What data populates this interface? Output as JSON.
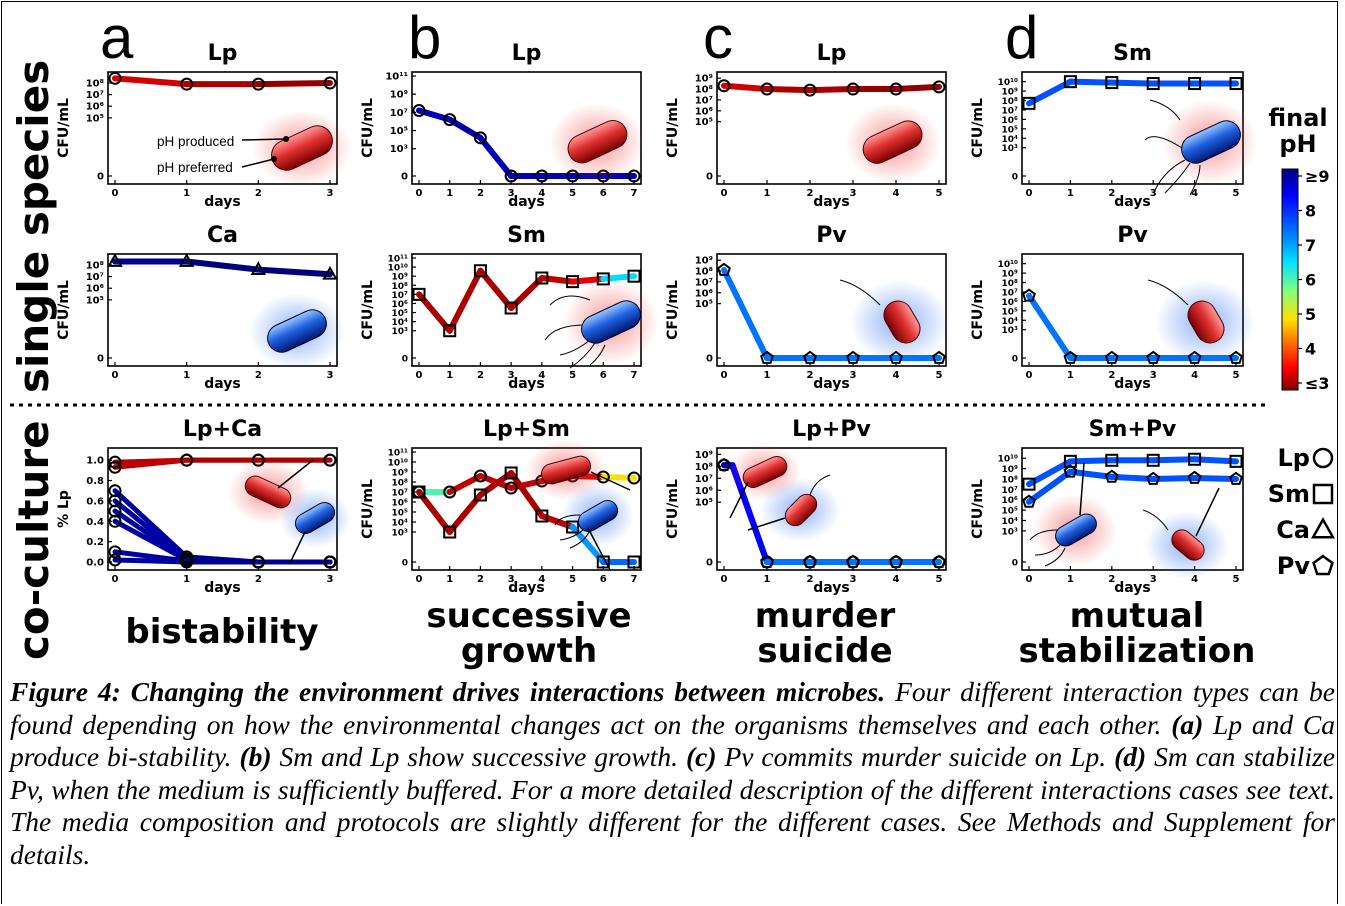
{
  "row_labels": {
    "single": "single species",
    "co": "co-culture"
  },
  "panel_letters": [
    "a",
    "b",
    "c",
    "d"
  ],
  "colorbar": {
    "title_line1": "final",
    "title_line2": "pH",
    "ticks": [
      "≥9",
      "8",
      "7",
      "6",
      "5",
      "4",
      "≤3"
    ],
    "pH_range": [
      3,
      9
    ]
  },
  "legend": [
    {
      "label": "Lp",
      "marker": "circle"
    },
    {
      "label": "Sm",
      "marker": "square"
    },
    {
      "label": "Ca",
      "marker": "triangle"
    },
    {
      "label": "Pv",
      "marker": "pentagon"
    }
  ],
  "interaction_labels": [
    {
      "line1": "bistability",
      "line2": ""
    },
    {
      "line1": "successive",
      "line2": "growth"
    },
    {
      "line1": "murder",
      "line2": "suicide"
    },
    {
      "line1": "mutual",
      "line2": "stabilization"
    }
  ],
  "cell_annotations": {
    "pH_produced": "pH produced",
    "pH_preferred": "pH preferred"
  },
  "chart_data": [
    {
      "id": "a1",
      "type": "line",
      "title": "Lp",
      "xlabel": "days",
      "ylabel": "CFU/mL",
      "xlim": [
        0,
        3
      ],
      "yticks": [
        "0",
        "10⁵",
        "10⁶",
        "10⁷",
        "10⁸"
      ],
      "ymax": 8.6,
      "series": [
        {
          "name": "Lp",
          "marker": "circle",
          "x": [
            0,
            1,
            2,
            3
          ],
          "log10": [
            8.4,
            7.9,
            7.9,
            8.0
          ],
          "pH": [
            5.5,
            3.4,
            3.2,
            3.1
          ]
        }
      ]
    },
    {
      "id": "b1",
      "type": "line",
      "title": "Lp",
      "xlabel": "days",
      "ylabel": "CFU/mL",
      "xlim": [
        0,
        7
      ],
      "yticks": [
        "0",
        "10³",
        "10⁵",
        "10⁷",
        "10⁹",
        "10¹¹"
      ],
      "ymax": 11,
      "series": [
        {
          "name": "Lp",
          "marker": "circle",
          "x": [
            0,
            1,
            2,
            3,
            4,
            5,
            6,
            7
          ],
          "log10": [
            7.2,
            6.2,
            4.2,
            0,
            0,
            0,
            0,
            0
          ],
          "pH": [
            8.6,
            8.7,
            8.8,
            8.7,
            8.7,
            8.7,
            8.7,
            8.7
          ]
        }
      ]
    },
    {
      "id": "c1",
      "type": "line",
      "title": "Lp",
      "xlabel": "days",
      "ylabel": "CFU/mL",
      "xlim": [
        0,
        5
      ],
      "yticks": [
        "0",
        "10⁵",
        "10⁶",
        "10⁷",
        "10⁸",
        "10⁹"
      ],
      "ymax": 9.2,
      "series": [
        {
          "name": "Lp",
          "marker": "circle",
          "x": [
            0,
            1,
            2,
            3,
            4,
            5
          ],
          "log10": [
            8.3,
            8.0,
            7.9,
            8.0,
            8.0,
            8.2
          ],
          "pH": [
            5.6,
            3.4,
            3.2,
            3.2,
            3.1,
            3.1
          ]
        }
      ]
    },
    {
      "id": "d1",
      "type": "line",
      "title": "Sm",
      "xlabel": "days",
      "ylabel": "CFU/mL",
      "xlim": [
        0,
        5
      ],
      "yticks": [
        "0",
        "10³",
        "10⁴",
        "10⁵",
        "10⁶",
        "10⁷",
        "10⁸",
        "10⁹",
        "10¹⁰"
      ],
      "ymax": 10.6,
      "series": [
        {
          "name": "Sm",
          "marker": "square",
          "x": [
            0,
            1,
            2,
            3,
            4,
            5
          ],
          "log10": [
            7.7,
            10.0,
            9.9,
            9.8,
            9.8,
            9.8
          ],
          "pH": [
            7.8,
            7.6,
            7.6,
            7.6,
            7.6,
            7.6
          ]
        }
      ]
    },
    {
      "id": "a2",
      "type": "line",
      "title": "Ca",
      "xlabel": "days",
      "ylabel": "CFU/mL",
      "xlim": [
        0,
        3
      ],
      "yticks": [
        "0",
        "10⁵",
        "10⁶",
        "10⁷",
        "10⁸"
      ],
      "ymax": 8.6,
      "series": [
        {
          "name": "Ca",
          "marker": "triangle",
          "x": [
            0,
            1,
            2,
            3
          ],
          "log10": [
            8.3,
            8.3,
            7.6,
            7.2
          ],
          "pH": [
            8.7,
            8.9,
            9.0,
            9.0
          ]
        }
      ]
    },
    {
      "id": "b2",
      "type": "line",
      "title": "Sm",
      "xlabel": "days",
      "ylabel": "CFU/mL",
      "xlim": [
        0,
        7
      ],
      "yticks": [
        "0",
        "10³",
        "10⁴",
        "10⁵",
        "10⁶",
        "10⁷",
        "10⁸",
        "10⁹",
        "10¹⁰",
        "10¹¹"
      ],
      "ymax": 11,
      "series": [
        {
          "name": "Sm",
          "marker": "square",
          "x": [
            0,
            1,
            2,
            3,
            4,
            5,
            6,
            7
          ],
          "log10": [
            7.0,
            3.0,
            9.6,
            5.5,
            8.8,
            8.4,
            8.7,
            9.0
          ],
          "pH": [
            6.0,
            3.2,
            3.2,
            3.2,
            3.2,
            3.3,
            3.5,
            6.5
          ]
        }
      ]
    },
    {
      "id": "c2",
      "type": "line",
      "title": "Pv",
      "xlabel": "days",
      "ylabel": "CFU/mL",
      "xlim": [
        0,
        5
      ],
      "yticks": [
        "0",
        "10⁵",
        "10⁶",
        "10⁷",
        "10⁸",
        "10⁹"
      ],
      "ymax": 9.2,
      "series": [
        {
          "name": "Pv",
          "marker": "pentagon",
          "x": [
            0,
            1,
            2,
            3,
            4,
            5
          ],
          "log10": [
            8.1,
            0,
            0,
            0,
            0,
            0
          ],
          "pH": [
            8.6,
            7.3,
            7.3,
            7.3,
            7.3,
            7.3
          ]
        }
      ]
    },
    {
      "id": "d2",
      "type": "line",
      "title": "Pv",
      "xlabel": "days",
      "ylabel": "CFU/mL",
      "xlim": [
        0,
        5
      ],
      "yticks": [
        "0",
        "10³",
        "10⁴",
        "10⁵",
        "10⁶",
        "10⁷",
        "10⁸",
        "10⁹",
        "10¹⁰"
      ],
      "ymax": 10.6,
      "series": [
        {
          "name": "Pv",
          "marker": "pentagon",
          "x": [
            0,
            1,
            2,
            3,
            4,
            5
          ],
          "log10": [
            6.6,
            0,
            0,
            0,
            0,
            0
          ],
          "pH": [
            8.6,
            7.3,
            7.3,
            7.3,
            7.3,
            7.3
          ]
        }
      ]
    },
    {
      "id": "a3",
      "type": "line",
      "title": "Lp+Ca",
      "xlabel": "days",
      "ylabel": "% Lp",
      "xlim": [
        0,
        3
      ],
      "yticks": [
        "0.0",
        "0.2",
        "0.4",
        "0.6",
        "0.8",
        "1.0"
      ],
      "linear": true,
      "ymax": 1.08,
      "series": [
        {
          "name": "Lp",
          "marker": "circle",
          "x": [
            0,
            1,
            2,
            3
          ],
          "y": [
            0.93,
            1.0,
            1.0,
            1.0
          ],
          "pH": [
            6.0,
            3.3,
            3.2,
            3.2
          ]
        },
        {
          "name": "Lp",
          "marker": "circle",
          "x": [
            0,
            1,
            2,
            3
          ],
          "y": [
            0.98,
            1.0,
            1.0,
            1.0
          ],
          "pH": [
            5.5,
            3.3,
            3.2,
            3.2
          ]
        },
        {
          "name": "Lp",
          "marker": "circle",
          "x": [
            0,
            1,
            2,
            3
          ],
          "y": [
            0.7,
            0.05,
            0.0,
            0.0
          ],
          "pH": [
            7.5,
            8.8,
            8.9,
            8.9
          ]
        },
        {
          "name": "Lp",
          "marker": "circle",
          "x": [
            0,
            1,
            2,
            3
          ],
          "y": [
            0.6,
            0.03,
            0.0,
            0.0
          ],
          "pH": [
            7.8,
            8.8,
            8.9,
            8.9
          ]
        },
        {
          "name": "Lp",
          "marker": "circle",
          "x": [
            0,
            1,
            2,
            3
          ],
          "y": [
            0.5,
            0.02,
            0.0,
            0.0
          ],
          "pH": [
            8.0,
            8.8,
            8.9,
            8.9
          ]
        },
        {
          "name": "Lp",
          "marker": "circle",
          "x": [
            0,
            1,
            2,
            3
          ],
          "y": [
            0.4,
            0.02,
            0.0,
            0.0
          ],
          "pH": [
            8.2,
            8.8,
            8.9,
            8.9
          ]
        },
        {
          "name": "Lp",
          "marker": "circle",
          "x": [
            0,
            1,
            2,
            3
          ],
          "y": [
            0.1,
            0.01,
            0.0,
            0.0
          ],
          "pH": [
            8.4,
            8.8,
            8.9,
            8.9
          ]
        },
        {
          "name": "Lp",
          "marker": "circle",
          "x": [
            0,
            1,
            2,
            3
          ],
          "y": [
            0.02,
            0.0,
            0.0,
            0.0
          ],
          "pH": [
            8.6,
            8.8,
            8.9,
            8.9
          ]
        }
      ]
    },
    {
      "id": "b3",
      "type": "line",
      "title": "Lp+Sm",
      "xlabel": "days",
      "ylabel": "CFU/mL",
      "xlim": [
        0,
        7
      ],
      "yticks": [
        "0",
        "10³",
        "10⁴",
        "10⁵",
        "10⁶",
        "10⁷",
        "10⁸",
        "10⁹",
        "10¹⁰",
        "10¹¹"
      ],
      "ymax": 11,
      "series": [
        {
          "name": "Lp",
          "marker": "circle",
          "x": [
            0,
            1,
            2,
            3,
            4,
            5,
            6,
            7
          ],
          "log10": [
            7.0,
            7.0,
            8.6,
            7.4,
            8.1,
            8.6,
            8.5,
            8.4
          ],
          "pH": [
            7.0,
            6.0,
            3.3,
            3.3,
            3.3,
            3.3,
            3.4,
            5.0
          ]
        },
        {
          "name": "Sm",
          "marker": "square",
          "x": [
            0,
            1,
            2,
            3,
            4,
            5,
            6,
            7
          ],
          "log10": [
            7.0,
            3.0,
            6.7,
            8.9,
            4.6,
            3.5,
            0,
            0
          ],
          "pH": [
            6.0,
            3.2,
            3.2,
            3.2,
            3.2,
            3.3,
            7.0,
            7.4
          ]
        }
      ]
    },
    {
      "id": "c3",
      "type": "line",
      "title": "Lp+Pv",
      "xlabel": "days",
      "ylabel": "CFU/mL",
      "xlim": [
        0,
        5
      ],
      "yticks": [
        "0",
        "10⁵",
        "10⁶",
        "10⁷",
        "10⁸",
        "10⁹"
      ],
      "ymax": 9.2,
      "series": [
        {
          "name": "Lp",
          "marker": "circle",
          "x": [
            0,
            0.2,
            1,
            1.2,
            2,
            3,
            4,
            5
          ],
          "log10": [
            8.1,
            8.1,
            0,
            0,
            0,
            0,
            0,
            0
          ],
          "pH": [
            8.5,
            8.5,
            8.2,
            7.3,
            7.3,
            7.3,
            7.3,
            7.3
          ]
        },
        {
          "name": "Pv",
          "marker": "pentagon",
          "x": [
            0,
            0.2,
            1,
            1.2,
            2,
            3,
            4,
            5
          ],
          "log10": [
            8.1,
            8.0,
            0,
            0,
            0,
            0,
            0,
            0
          ],
          "pH": [
            8.7,
            8.7,
            8.3,
            7.3,
            7.3,
            7.3,
            7.3,
            7.3
          ]
        }
      ]
    },
    {
      "id": "d3",
      "type": "line",
      "title": "Sm+Pv",
      "xlabel": "days",
      "ylabel": "CFU/mL",
      "xlim": [
        0,
        5
      ],
      "yticks": [
        "0",
        "10³",
        "10⁴",
        "10⁵",
        "10⁶",
        "10⁷",
        "10⁸",
        "10⁹",
        "10¹⁰"
      ],
      "ymax": 10.6,
      "series": [
        {
          "name": "Sm",
          "marker": "square",
          "x": [
            0,
            1,
            2,
            3,
            4,
            5
          ],
          "log10": [
            7.5,
            9.7,
            9.8,
            9.8,
            9.9,
            9.7
          ],
          "pH": [
            7.8,
            7.6,
            7.6,
            7.6,
            7.6,
            7.6
          ]
        },
        {
          "name": "Pv",
          "marker": "pentagon",
          "x": [
            0,
            1,
            2,
            3,
            4,
            5
          ],
          "log10": [
            5.8,
            8.7,
            8.2,
            8.0,
            8.1,
            8.0
          ],
          "pH": [
            7.8,
            7.6,
            7.6,
            7.6,
            7.6,
            7.6
          ]
        }
      ]
    }
  ],
  "caption": {
    "label": "Figure 4: Changing the environment drives interactions between microbes.",
    "intro": " Four different interaction types can be found depending on how the environmental changes act on the organisms themselves and each other. ",
    "a_label": "(a)",
    "a_text": " Lp and Ca produce bi-stability. ",
    "b_label": "(b)",
    "b_text": " Sm and Lp show successive growth. ",
    "c_label": "(c)",
    "c_text": " Pv commits murder suicide on Lp. ",
    "d_label": "(d)",
    "d_text": " Sm can stabilize Pv, when the medium is sufficiently buffered. For a more detailed description of the different interactions cases see text. The media composition and protocols are slightly different for the different cases. See Methods and Supplement for details."
  }
}
